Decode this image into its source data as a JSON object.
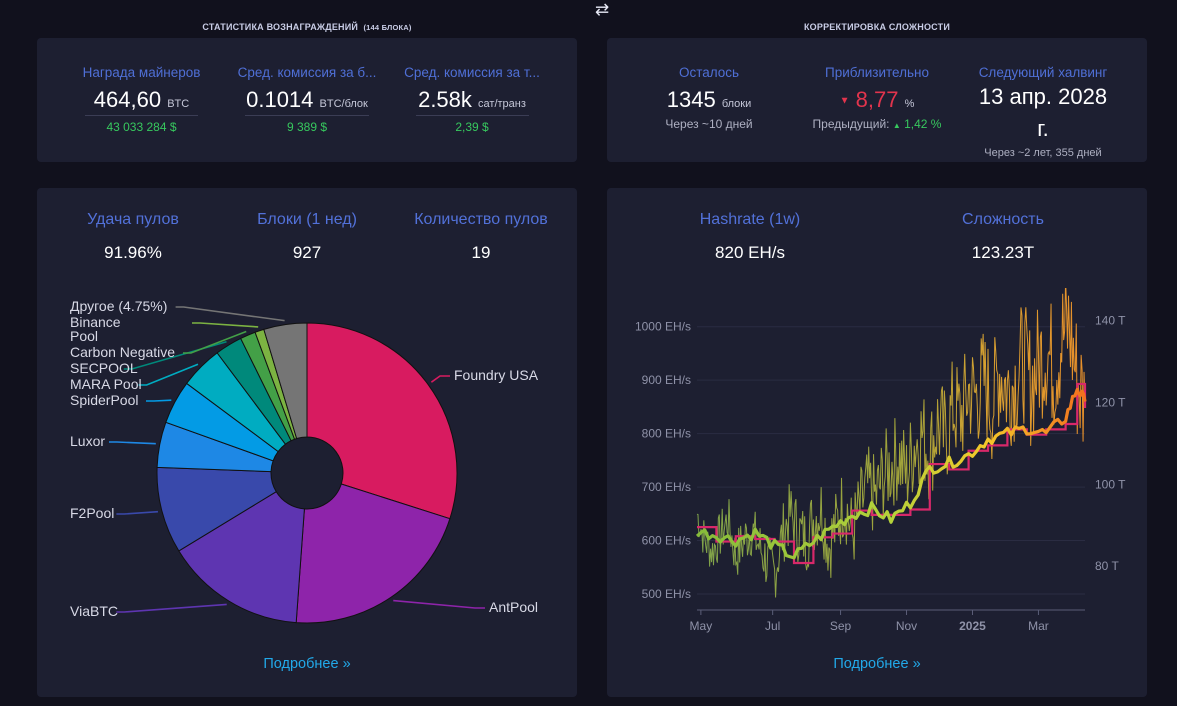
{
  "header": {
    "rewards_title": "СТАТИСТИКА ВОЗНАГРАЖДЕНИЙ",
    "rewards_title_sub": "(144 БЛОКА)",
    "difficulty_title": "КОРРЕКТИРОВКА СЛОЖНОСТИ",
    "swap_icon": "swap-arrows-icon"
  },
  "rewards": {
    "miners_reward": {
      "label": "Награда майнеров",
      "value": "464,60",
      "unit": "BTC",
      "sub": "43 033 284 $"
    },
    "avg_fee_block": {
      "label": "Сред. комиссия за б...",
      "value": "0.1014",
      "unit": "BTC/блок",
      "sub": "9 389 $"
    },
    "avg_fee_tx": {
      "label": "Сред. комиссия за т...",
      "value": "2.58k",
      "unit": "сат/транз",
      "sub": "2,39 $"
    }
  },
  "difficulty": {
    "remaining": {
      "label": "Осталось",
      "value": "1345",
      "unit": "блоки",
      "sub": "Через ~10 дней"
    },
    "estimate": {
      "label": "Приблизительно",
      "arrow": "▼",
      "value": "8,77",
      "unit": "%",
      "sub_label": "Предыдущий:",
      "sub_arrow": "▲",
      "sub_value": "1,42 %"
    },
    "halving": {
      "label": "Следующий халвинг",
      "value_line1": "13 апр. 2028",
      "value_line2": "г.",
      "sub": "Через ~2 лет, 355 дней"
    }
  },
  "pools": {
    "luck": {
      "label": "Удача пулов",
      "value": "91.96%"
    },
    "blocks": {
      "label": "Блоки (1 нед)",
      "value": "927"
    },
    "count": {
      "label": "Количество пулов",
      "value": "19"
    },
    "more": "Подробнее »"
  },
  "mining": {
    "hashrate": {
      "label": "Hashrate (1w)",
      "value": "820 EH/s"
    },
    "difficulty": {
      "label": "Сложность",
      "value": "123.23T"
    },
    "more": "Подробнее »"
  },
  "chart_data": [
    {
      "type": "pie",
      "slices": [
        {
          "name": "Foundry USA",
          "value": 30.6,
          "color": "#d81b60"
        },
        {
          "name": "AntPool",
          "value": 21.7,
          "color": "#8e24aa"
        },
        {
          "name": "ViaBTC",
          "value": 15.5,
          "color": "#5e35b1"
        },
        {
          "name": "F2Pool",
          "value": 9.5,
          "color": "#3949ab"
        },
        {
          "name": "Luxor",
          "value": 5.0,
          "color": "#1e88e5"
        },
        {
          "name": "SpiderPool",
          "value": 4.8,
          "color": "#039be5"
        },
        {
          "name": "MARA Pool",
          "value": 4.7,
          "color": "#00acc1"
        },
        {
          "name": "SECPOOL",
          "value": 3.0,
          "color": "#00897b"
        },
        {
          "name": "Carbon Negative",
          "value": 1.7,
          "color": "#43a047"
        },
        {
          "name": "Binance Pool",
          "value": 1.0,
          "color": "#7cb342"
        },
        {
          "name": "Другое (4.75%)",
          "value": 4.75,
          "color": "#757575"
        }
      ]
    },
    {
      "type": "line",
      "x_ticks": [
        "May",
        "Jul",
        "Sep",
        "Nov",
        "2025",
        "Mar"
      ],
      "y_left_ticks": [
        "500 EH/s",
        "600 EH/s",
        "700 EH/s",
        "800 EH/s",
        "900 EH/s",
        "1000 EH/s"
      ],
      "y_left_range": [
        470,
        1050
      ],
      "y_right_ticks": [
        "80 T",
        "100 T",
        "120 T",
        "140 T"
      ],
      "y_right_range": [
        69.3,
        145
      ],
      "series": [
        {
          "color": "#9ab348",
          "x": [
            0,
            2,
            4,
            6,
            8,
            10,
            12,
            14,
            16,
            18,
            20,
            22,
            24,
            26,
            28,
            30,
            32,
            34,
            36,
            38,
            40,
            42,
            44,
            46,
            48,
            50,
            52,
            54,
            56,
            58,
            60,
            62,
            64,
            66,
            68,
            70,
            72,
            74,
            76,
            78,
            80,
            82,
            84,
            86,
            88,
            90,
            92,
            94,
            96,
            98,
            100
          ],
          "values": [
            650,
            600,
            580,
            610,
            640,
            570,
            600,
            620,
            590,
            560,
            540,
            610,
            650,
            620,
            600,
            640,
            660,
            590,
            630,
            680,
            610,
            660,
            700,
            680,
            720,
            740,
            760,
            720,
            780,
            800,
            760,
            820,
            790,
            850,
            830,
            880,
            870,
            900,
            850,
            920,
            880,
            900,
            940,
            890,
            930,
            960,
            920,
            980,
            1000,
            900,
            850
          ]
        },
        {
          "color": "#f08c24",
          "x": [
            0,
            5,
            10,
            15,
            20,
            25,
            30,
            35,
            40,
            45,
            50,
            55,
            60,
            65,
            70,
            75,
            80,
            85,
            90,
            95,
            98,
            100
          ],
          "values": [
            617,
            610,
            600,
            615,
            590,
            570,
            598,
            625,
            648,
            660,
            640,
            670,
            735,
            745,
            760,
            790,
            800,
            810,
            800,
            830,
            885,
            860
          ]
        }
      ]
    }
  ]
}
